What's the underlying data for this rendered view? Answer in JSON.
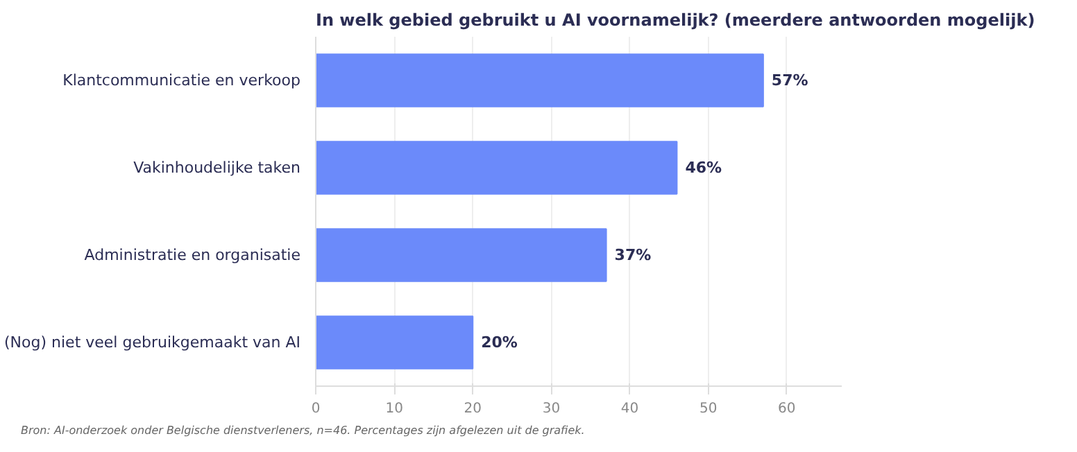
{
  "chart_data": {
    "type": "bar",
    "orientation": "horizontal",
    "title": "In welk gebied gebruikt u AI voornamelijk? (meerdere antwoorden mogelijk)",
    "categories": [
      "Klantcommunicatie en verkoop",
      "Vakinhoudelijke taken",
      "Administratie en organisatie",
      "(Nog) niet veel gebruikgemaakt van AI"
    ],
    "values": [
      57,
      46,
      37,
      20
    ],
    "value_labels": [
      "57%",
      "46%",
      "37%",
      "20%"
    ],
    "color": "#6b8afa",
    "xlim": [
      0,
      67
    ],
    "xticks": [
      0,
      10,
      20,
      30,
      40,
      50,
      60
    ],
    "grid": "x",
    "annotations": [
      "Bron: AI-onderzoek onder Belgische dienstverleners, n=46. Percentages zijn afgelezen uit de grafiek."
    ]
  }
}
